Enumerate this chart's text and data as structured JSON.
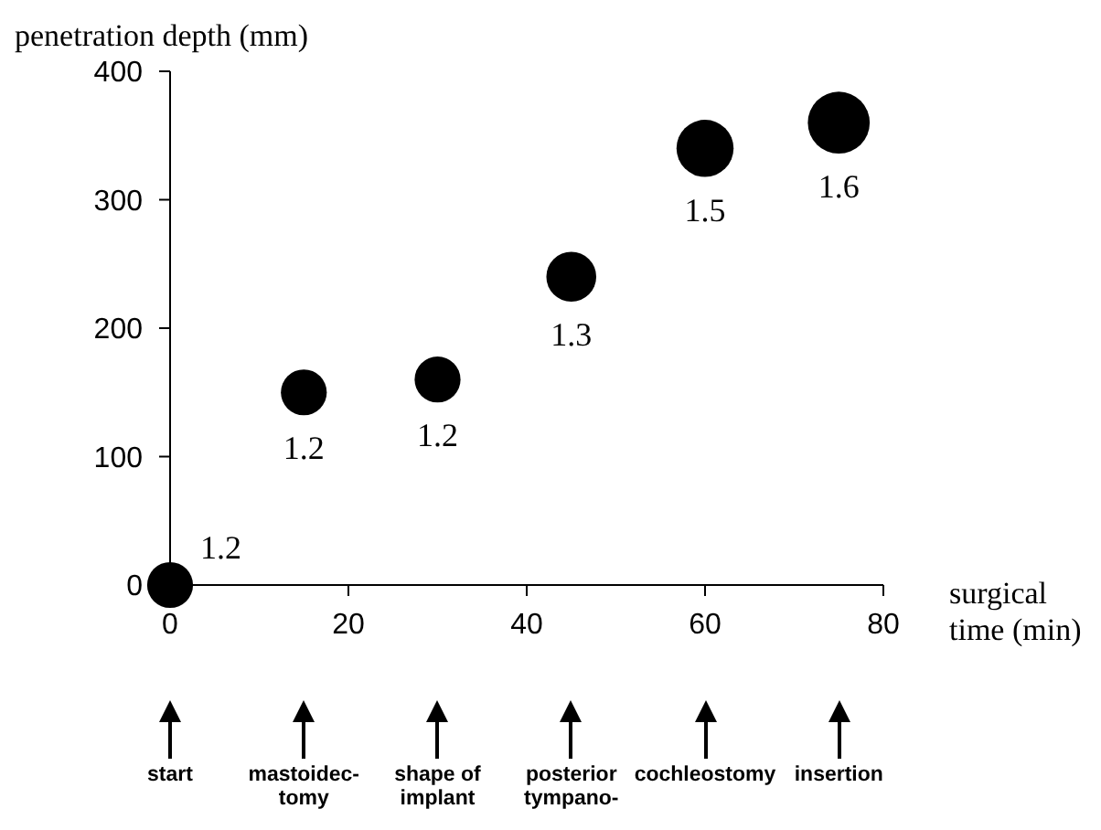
{
  "chart_data": {
    "type": "bubble",
    "ylabel": "penetration depth (mm)",
    "xlabel": "surgical time (min)",
    "x": [
      0,
      15,
      30,
      45,
      60,
      75
    ],
    "values": [
      0,
      150,
      160,
      240,
      340,
      360
    ],
    "sizes": [
      0.55,
      0.55,
      0.55,
      0.65,
      0.85,
      1
    ],
    "color": "#000000",
    "xlim": [
      0,
      80
    ],
    "xticks": [
      0,
      20,
      40,
      60,
      80
    ],
    "ylim": [
      0,
      400
    ],
    "yticks": [
      0,
      100,
      200,
      300,
      400
    ],
    "grid": false,
    "legend": false,
    "annotations": [
      {
        "text": "1.2",
        "x": 0,
        "y": 0
      },
      {
        "text": "1.2",
        "x": 15,
        "y": 150
      },
      {
        "text": "1.2",
        "x": 30,
        "y": 160
      },
      {
        "text": "1.3",
        "x": 45,
        "y": 240
      },
      {
        "text": "1.5",
        "x": 60,
        "y": 340
      },
      {
        "text": "1.6",
        "x": 75,
        "y": 360
      },
      "start",
      "mastoidec-\ntomy",
      "shape of\nimplant",
      "posterior\ntympano-",
      "cochleostomy",
      "insertion"
    ]
  }
}
